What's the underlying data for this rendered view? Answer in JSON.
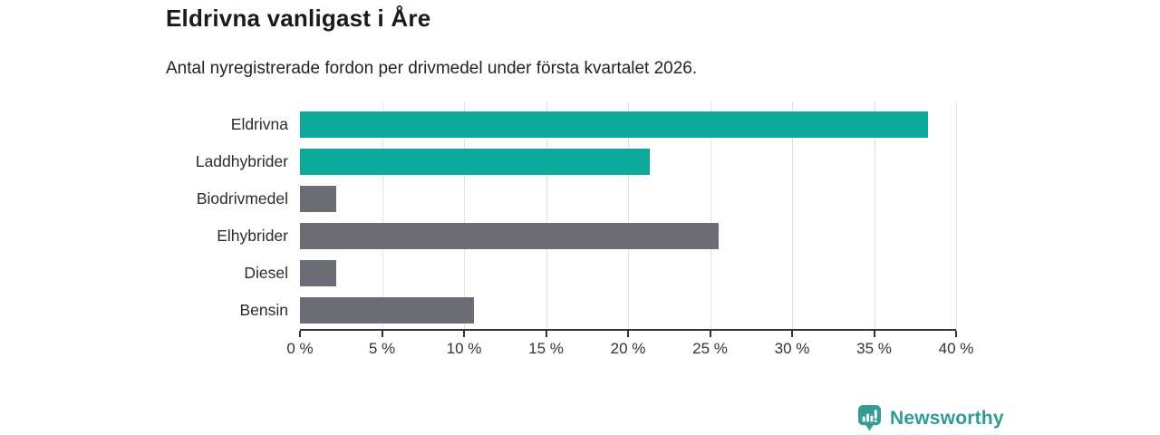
{
  "header": {
    "title": "Eldrivna vanligast i Åre",
    "subtitle": "Antal nyregistrerade fordon per drivmedel under första kvartalet 2026."
  },
  "chart_data": {
    "type": "bar",
    "orientation": "horizontal",
    "title": "Eldrivna vanligast i Åre",
    "subtitle": "Antal nyregistrerade fordon per drivmedel under första kvartalet 2026.",
    "categories": [
      "Eldrivna",
      "Laddhybrider",
      "Biodrivmedel",
      "Elhybrider",
      "Diesel",
      "Bensin"
    ],
    "values": [
      38.3,
      21.3,
      2.2,
      25.5,
      2.2,
      10.6
    ],
    "unit": "%",
    "xlim": [
      0,
      40
    ],
    "x_ticks": [
      0,
      5,
      10,
      15,
      20,
      25,
      30,
      35,
      40
    ],
    "x_tick_labels": [
      "0 %",
      "5 %",
      "10 %",
      "15 %",
      "20 %",
      "25 %",
      "30 %",
      "35 %",
      "40 %"
    ],
    "bar_colors": [
      "#0ca89a",
      "#0ca89a",
      "#6d6d75",
      "#6d6d75",
      "#6d6d75",
      "#6d6d75"
    ],
    "highlight_color": "#0ca89a",
    "default_color": "#6d6d75",
    "grid": true,
    "gridline_color": "#e2e2e2",
    "axis_color": "#333333",
    "legend": null
  },
  "footer": {
    "brand": "Newsworthy",
    "brand_color": "#2f9b93"
  }
}
